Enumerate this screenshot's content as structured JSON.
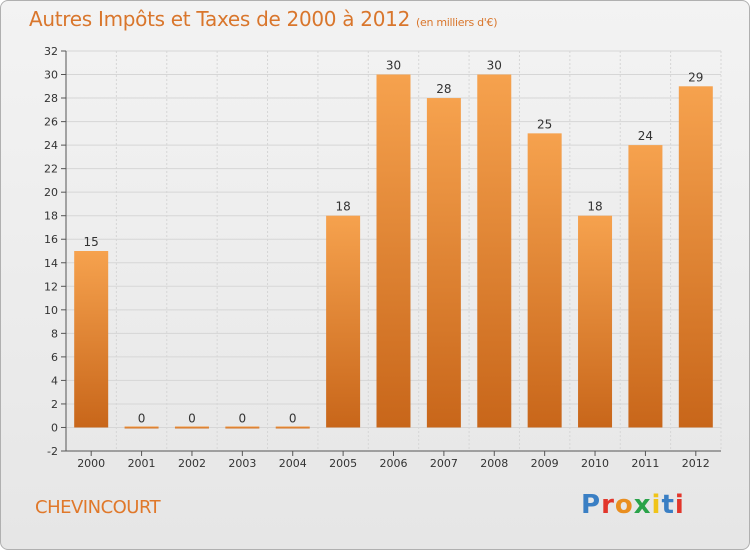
{
  "title": "Autres Impôts et Taxes de 2000 à 2012",
  "subtitle": "(en milliers d'€)",
  "commune": "CHEVINCOURT",
  "logo": {
    "letters": [
      "P",
      "r",
      "o",
      "x",
      "i",
      "t",
      "i"
    ],
    "colors": [
      "#3a7fc4",
      "#e2362b",
      "#e98e1f",
      "#2aa34a",
      "#f0c419",
      "#3a7fc4",
      "#e2362b"
    ]
  },
  "chart_data": {
    "type": "bar",
    "categories": [
      "2000",
      "2001",
      "2002",
      "2003",
      "2004",
      "2005",
      "2006",
      "2007",
      "2008",
      "2009",
      "2010",
      "2011",
      "2012"
    ],
    "values": [
      15,
      0,
      0,
      0,
      0,
      18,
      30,
      28,
      30,
      25,
      18,
      24,
      29
    ],
    "data_labels": [
      "15",
      "0",
      "0",
      "0",
      "0",
      "18",
      "30",
      "28",
      "30",
      "25",
      "18",
      "24",
      "29"
    ],
    "title": "Autres Impôts et Taxes de 2000 à 2012",
    "subtitle": "(en milliers d'€)",
    "ylim": [
      -2,
      32
    ],
    "yticks": [
      -2,
      0,
      2,
      4,
      6,
      8,
      10,
      12,
      14,
      16,
      18,
      20,
      22,
      24,
      26,
      28,
      30,
      32
    ],
    "grid": true,
    "bar_color_top": "#f6a24e",
    "bar_color_bottom": "#c8661a"
  }
}
